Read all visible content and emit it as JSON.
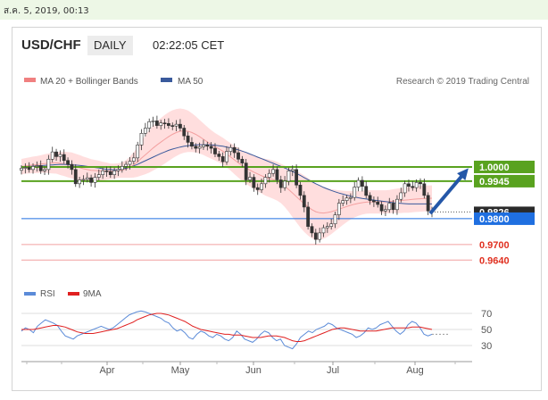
{
  "date_stamp": "ส.ค. 5, 2019, 00:13",
  "header": {
    "symbol": "USD/CHF",
    "timeframe": "DAILY",
    "time": "02:22:05 CET"
  },
  "legend": [
    {
      "label": "MA 20 + Bollinger Bands",
      "color": "#f08080"
    },
    {
      "label": "MA 50",
      "color": "#3a5a9c"
    }
  ],
  "credit": "Research © 2019 Trading Central",
  "rsi_legend": [
    {
      "label": "RSI",
      "color": "#5b8bd8"
    },
    {
      "label": "9MA",
      "color": "#e02020"
    }
  ],
  "chart_data": {
    "type": "candlestick",
    "x_ticks": [
      "Apr",
      "May",
      "Jun",
      "Jul",
      "Aug"
    ],
    "levels": [
      {
        "value": 1.0,
        "label": "1.0000",
        "role": "resistance",
        "color": "#59a21f"
      },
      {
        "value": 0.9945,
        "label": "0.9945",
        "role": "resistance",
        "color": "#59a21f"
      },
      {
        "value": 0.9826,
        "label": "0.9826",
        "role": "last price",
        "color": "#2a2a2a"
      },
      {
        "value": 0.98,
        "label": "0.9800",
        "role": "pivot",
        "color": "#1f6fe0"
      },
      {
        "value": 0.97,
        "label": "0.9700",
        "role": "support",
        "color": "#e03020"
      },
      {
        "value": 0.964,
        "label": "0.9640",
        "role": "support",
        "color": "#e03020"
      }
    ],
    "price_range": [
      0.961,
      1.0238
    ],
    "projection": {
      "from": 0.982,
      "to": 1.0,
      "direction": "up"
    },
    "close": [
      0.9995,
      0.9998,
      0.999,
      1.0002,
      1.0005,
      0.9985,
      0.999,
      1.003,
      1.0058,
      1.004,
      1.0048,
      1.0025,
      1.001,
      0.999,
      0.9935,
      0.995,
      0.9952,
      0.9958,
      0.994,
      0.996,
      0.997,
      0.9985,
      0.9982,
      0.997,
      0.9985,
      0.999,
      1.0002,
      1.001,
      1.0022,
      1.0035,
      1.0085,
      1.013,
      1.015,
      1.0175,
      1.0178,
      1.016,
      1.017,
      1.0168,
      1.016,
      1.0158,
      1.0165,
      1.015,
      1.012,
      1.0095,
      1.008,
      1.0072,
      1.0078,
      1.0085,
      1.008,
      1.0072,
      1.005,
      1.004,
      1.002,
      1.006,
      1.0075,
      1.0055,
      1.003,
      1.0015,
      0.995,
      0.996,
      0.992,
      0.9912,
      0.9935,
      0.996,
      0.9975,
      0.999,
      0.995,
      0.992,
      0.9945,
      0.9985,
      0.999,
      0.993,
      0.989,
      0.9845,
      0.977,
      0.9745,
      0.972,
      0.9745,
      0.9765,
      0.977,
      0.978,
      0.9815,
      0.986,
      0.987,
      0.988,
      0.9882,
      0.9922,
      0.9948,
      0.9925,
      0.989,
      0.987,
      0.9865,
      0.9855,
      0.983,
      0.9835,
      0.986,
      0.9835,
      0.9875,
      0.99,
      0.9935,
      0.9925,
      0.992,
      0.994,
      0.9935,
      0.989,
      0.983,
      0.9826
    ],
    "ma20": [
      1.0001,
      1.0004,
      1.0006,
      1.0008,
      1.0009,
      1.0011,
      1.0013,
      1.0014,
      1.0015,
      1.0016,
      1.0014,
      1.0012,
      1.0009,
      1.0006,
      1.0001,
      0.9997,
      0.9993,
      0.999,
      0.9987,
      0.9986,
      0.9985,
      0.9984,
      0.9984,
      0.9983,
      0.9984,
      0.9986,
      0.9988,
      0.9992,
      0.9999,
      1.0008,
      1.002,
      1.0034,
      1.0047,
      1.006,
      1.0073,
      1.0085,
      1.0096,
      1.0107,
      1.0117,
      1.0126,
      1.0133,
      1.0138,
      1.0139,
      1.0138,
      1.0133,
      1.0126,
      1.0117,
      1.0107,
      1.0097,
      1.0087,
      1.0078,
      1.007,
      1.0061,
      1.005,
      1.0039,
      1.0027,
      1.0016,
      1.0005,
      0.9996,
      0.9988,
      0.998,
      0.9973,
      0.9966,
      0.996,
      0.9956,
      0.9951,
      0.9945,
      0.9936,
      0.9925,
      0.9913,
      0.9899,
      0.9885,
      0.9871,
      0.9858,
      0.9846,
      0.9835,
      0.9827,
      0.9823,
      0.9822,
      0.9824,
      0.9827,
      0.9832,
      0.9837,
      0.9842,
      0.9847,
      0.9852,
      0.9856,
      0.9859,
      0.9862,
      0.9864,
      0.9865,
      0.9865,
      0.9865,
      0.9865,
      0.9865,
      0.9866,
      0.9868,
      0.9869,
      0.987,
      0.9872,
      0.9873,
      0.9875,
      0.9876,
      0.9877,
      0.9878,
      0.9878,
      0.9879
    ],
    "ma50": [
      1.0,
      1.0001,
      1.0002,
      1.0003,
      1.0004,
      1.0005,
      1.0006,
      1.0007,
      1.0008,
      1.0009,
      1.001,
      1.001,
      1.0009,
      1.0008,
      1.0007,
      1.0006,
      1.0004,
      1.0002,
      1.0,
      0.9998,
      0.9996,
      0.9993,
      0.9991,
      0.999,
      0.9989,
      0.999,
      0.9992,
      0.9995,
      0.9999,
      1.0004,
      1.001,
      1.0017,
      1.0024,
      1.0031,
      1.0038,
      1.0045,
      1.0052,
      1.0058,
      1.0064,
      1.0069,
      1.0073,
      1.0077,
      1.008,
      1.0082,
      1.0084,
      1.0085,
      1.0086,
      1.0086,
      1.0086,
      1.0085,
      1.0084,
      1.0082,
      1.008,
      1.0077,
      1.0074,
      1.007,
      1.0066,
      1.0061,
      1.0056,
      1.005,
      1.0044,
      1.0038,
      1.0032,
      1.0026,
      1.002,
      1.0014,
      1.0008,
      1.0002,
      0.9996,
      0.9989,
      0.9982,
      0.9975,
      0.9967,
      0.9959,
      0.9951,
      0.9943,
      0.9935,
      0.9928,
      0.9921,
      0.9915,
      0.9909,
      0.9904,
      0.9899,
      0.9895,
      0.9891,
      0.9887,
      0.9884,
      0.9881,
      0.9878,
      0.9876,
      0.9874,
      0.9872,
      0.987,
      0.9868,
      0.9866,
      0.9864,
      0.9862,
      0.986,
      0.9859,
      0.9858,
      0.9857,
      0.9857,
      0.9857,
      0.9857,
      0.9857,
      0.9857,
      0.9857
    ],
    "bb_width": [
      0.003,
      0.003,
      0.0031,
      0.0032,
      0.0033,
      0.0034,
      0.0036,
      0.0038,
      0.004,
      0.0042,
      0.0045,
      0.0047,
      0.0049,
      0.005,
      0.005,
      0.0049,
      0.0047,
      0.0045,
      0.0043,
      0.0041,
      0.0039,
      0.0036,
      0.0033,
      0.003,
      0.0029,
      0.0028,
      0.003,
      0.0034,
      0.0041,
      0.0049,
      0.0058,
      0.0067,
      0.0075,
      0.0082,
      0.0087,
      0.0091,
      0.0093,
      0.0094,
      0.0094,
      0.0093,
      0.0091,
      0.0088,
      0.0084,
      0.008,
      0.0075,
      0.007,
      0.0065,
      0.0061,
      0.0058,
      0.0055,
      0.0053,
      0.0052,
      0.0052,
      0.0052,
      0.0053,
      0.0055,
      0.0057,
      0.0059,
      0.0061,
      0.0063,
      0.0065,
      0.0067,
      0.0069,
      0.0071,
      0.0073,
      0.0074,
      0.0075,
      0.0076,
      0.008,
      0.0086,
      0.0093,
      0.0099,
      0.0105,
      0.0109,
      0.0111,
      0.0111,
      0.0109,
      0.0105,
      0.01,
      0.0094,
      0.0087,
      0.008,
      0.0073,
      0.0066,
      0.006,
      0.0055,
      0.0051,
      0.0048,
      0.0046,
      0.0045,
      0.0045,
      0.0045,
      0.0045,
      0.0045,
      0.0045,
      0.0045,
      0.0046,
      0.0047,
      0.0048,
      0.0049,
      0.005,
      0.005,
      0.005,
      0.005,
      0.005,
      0.005,
      0.005
    ],
    "rsi": {
      "ticks": [
        "70",
        "50",
        "30"
      ],
      "range": [
        20,
        80
      ],
      "rsi": [
        48,
        52,
        50,
        46,
        54,
        58,
        62,
        60,
        58,
        55,
        48,
        42,
        40,
        38,
        42,
        44,
        46,
        48,
        50,
        52,
        54,
        52,
        50,
        52,
        56,
        60,
        64,
        68,
        70,
        72,
        73,
        72,
        70,
        68,
        66,
        64,
        60,
        58,
        52,
        48,
        50,
        46,
        40,
        38,
        44,
        48,
        46,
        42,
        40,
        44,
        42,
        38,
        36,
        40,
        48,
        44,
        38,
        36,
        34,
        38,
        44,
        48,
        46,
        40,
        36,
        38,
        30,
        28,
        26,
        32,
        40,
        44,
        48,
        46,
        50,
        52,
        54,
        58,
        56,
        52,
        50,
        48,
        46,
        44,
        40,
        42,
        46,
        52,
        50,
        52,
        56,
        58,
        60,
        54,
        48,
        44,
        48,
        56,
        60,
        58,
        52,
        44,
        42,
        44
      ],
      "ma9": [
        50,
        50,
        50,
        50,
        51,
        52,
        53,
        54,
        55,
        55,
        54,
        53,
        51,
        49,
        47,
        46,
        45,
        45,
        45,
        46,
        47,
        48,
        49,
        50,
        51,
        53,
        55,
        57,
        59,
        62,
        64,
        66,
        68,
        69,
        70,
        70,
        69,
        68,
        66,
        64,
        62,
        60,
        57,
        54,
        52,
        50,
        49,
        48,
        47,
        46,
        45,
        44,
        44,
        43,
        43,
        43,
        42,
        41,
        40,
        40,
        40,
        41,
        42,
        42,
        42,
        41,
        40,
        38,
        36,
        35,
        35,
        36,
        38,
        40,
        42,
        44,
        46,
        48,
        50,
        51,
        52,
        52,
        51,
        50,
        49,
        48,
        48,
        48,
        48,
        48,
        49,
        50,
        51,
        52,
        52,
        52,
        52,
        52,
        53,
        53,
        53,
        52,
        51,
        50
      ]
    }
  }
}
